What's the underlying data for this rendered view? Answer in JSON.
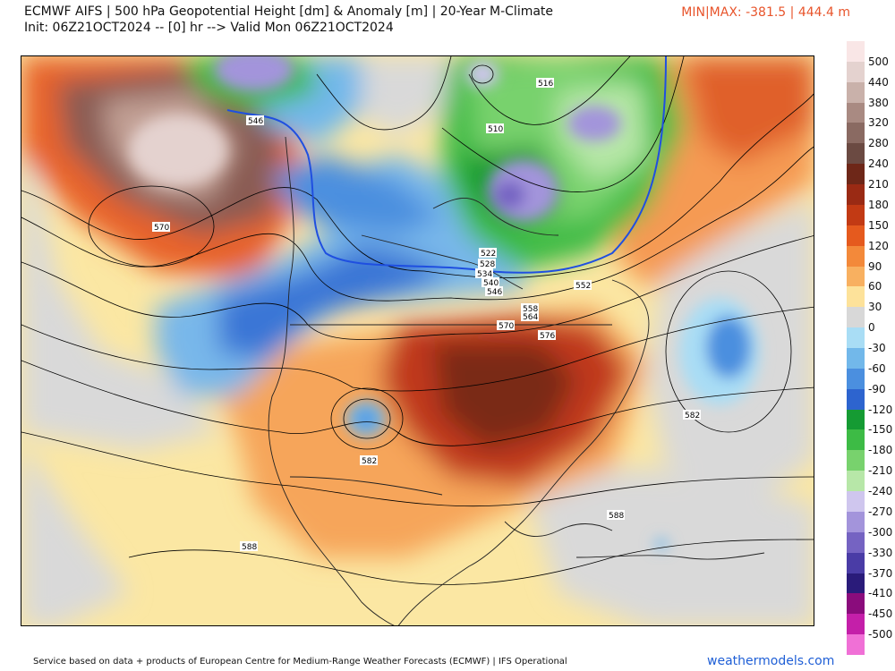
{
  "header": {
    "title_line1": "ECMWF AIFS | 500 hPa Geopotential Height [dm] & Anomaly [m] | 20-Year M-Climate",
    "title_line2": "Init: 06Z21OCT2024 -- [0] hr --> Valid Mon 06Z21OCT2024",
    "minmax": "MIN|MAX: -381.5 | 444.4 m"
  },
  "colorbar": {
    "labels": [
      "500",
      "440",
      "380",
      "320",
      "280",
      "240",
      "210",
      "180",
      "150",
      "120",
      "90",
      "60",
      "30",
      "0",
      "-30",
      "-60",
      "-90",
      "-120",
      "-150",
      "-180",
      "-210",
      "-240",
      "-270",
      "-300",
      "-330",
      "-370",
      "-410",
      "-450",
      "-500"
    ],
    "colors": [
      "#f9e6e6",
      "#e4d2cf",
      "#c9b1aa",
      "#a98a82",
      "#8a6a62",
      "#6b4a42",
      "#6e2718",
      "#9a2a14",
      "#c23a14",
      "#e55a1e",
      "#f3893a",
      "#f8b060",
      "#fde29a",
      "#d8d8d8",
      "#a9ddf5",
      "#72b8ea",
      "#4b8fdf",
      "#2d64cf",
      "#159b33",
      "#3dbb45",
      "#78d26d",
      "#b7e7a8",
      "#cfc6ee",
      "#a394db",
      "#7563c2",
      "#4a3ca6",
      "#2a1b7a",
      "#8a0c7c",
      "#c41fa9",
      "#f070d6"
    ]
  },
  "map": {
    "contour_labels": [
      "546",
      "570",
      "516",
      "510",
      "522",
      "528",
      "534",
      "540",
      "546",
      "552",
      "558",
      "564",
      "570",
      "576",
      "582",
      "582",
      "588",
      "588"
    ]
  },
  "footer": {
    "attribution": "Service based on data + products of European Centre for Medium-Range Weather Forecasts (ECMWF) | IFS Operational",
    "brand": "weathermodels.com"
  }
}
